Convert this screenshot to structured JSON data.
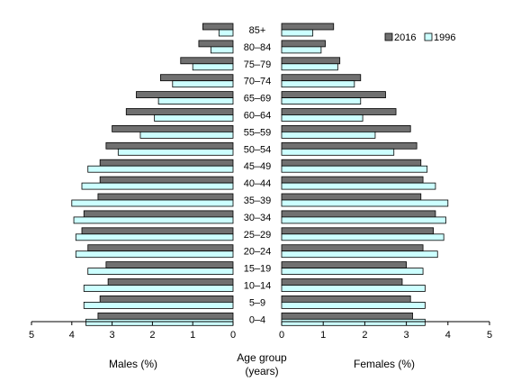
{
  "chart_data": {
    "type": "bar",
    "orientation": "horizontal",
    "layout": "population-pyramid",
    "categories": [
      "85+",
      "80-84",
      "75-79",
      "70-74",
      "65-69",
      "60-64",
      "55-59",
      "50-54",
      "45-49",
      "40-44",
      "35-39",
      "30-34",
      "25-29",
      "20-24",
      "15-19",
      "10-14",
      "5-9",
      "0-4"
    ],
    "category_labels": [
      "85+",
      "80–84",
      "75–79",
      "70–74",
      "65–69",
      "60–64",
      "55–59",
      "50–54",
      "45–49",
      "40–44",
      "35–39",
      "30–34",
      "25–29",
      "20–24",
      "15–19",
      "10–14",
      "5–9",
      "0–4"
    ],
    "series": [
      {
        "name": "2016",
        "color": "#707070",
        "males": [
          0.75,
          0.85,
          1.3,
          1.8,
          2.4,
          2.65,
          3.0,
          3.15,
          3.3,
          3.3,
          3.35,
          3.7,
          3.75,
          3.6,
          3.15,
          3.1,
          3.3,
          3.35
        ],
        "females": [
          1.25,
          1.05,
          1.4,
          1.9,
          2.5,
          2.75,
          3.1,
          3.25,
          3.35,
          3.4,
          3.35,
          3.7,
          3.65,
          3.4,
          3.0,
          2.9,
          3.1,
          3.15
        ]
      },
      {
        "name": "1996",
        "color": "#ccffff",
        "males": [
          0.35,
          0.55,
          1.0,
          1.5,
          1.85,
          1.95,
          2.3,
          2.85,
          3.6,
          3.75,
          4.0,
          3.95,
          3.9,
          3.9,
          3.6,
          3.7,
          3.7,
          3.65
        ],
        "females": [
          0.75,
          0.95,
          1.35,
          1.75,
          1.9,
          1.95,
          2.25,
          2.7,
          3.5,
          3.7,
          4.0,
          3.95,
          3.9,
          3.75,
          3.4,
          3.45,
          3.45,
          3.45
        ]
      }
    ],
    "male_axis": {
      "ticks": [
        "5",
        "4",
        "3",
        "2",
        "1",
        "0"
      ],
      "range": [
        0,
        5
      ],
      "label": "Males (%)"
    },
    "female_axis": {
      "ticks": [
        "0",
        "1",
        "2",
        "3",
        "4",
        "5"
      ],
      "range": [
        0,
        5
      ],
      "label": "Females (%)"
    },
    "center_label": [
      "Age group",
      "(years)"
    ],
    "legend_placement": "top-right",
    "grid": false
  }
}
